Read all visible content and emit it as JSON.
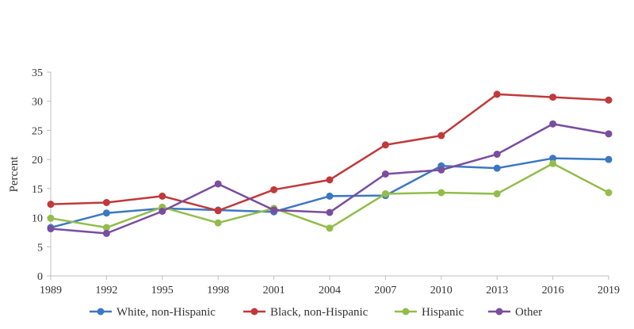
{
  "chart_data": {
    "type": "line",
    "title": "",
    "xlabel": "",
    "ylabel": "Percent",
    "x": [
      "1989",
      "1992",
      "1995",
      "1998",
      "2001",
      "2004",
      "2007",
      "2010",
      "2013",
      "2016",
      "2019"
    ],
    "ylim": [
      0,
      35
    ],
    "yticks": [
      0,
      5,
      10,
      15,
      20,
      25,
      30,
      35
    ],
    "grid": false,
    "legend_position": "bottom",
    "series": [
      {
        "name": "White, non-Hispanic",
        "color": "#3c78c2",
        "values": [
          8.3,
          10.8,
          11.6,
          11.3,
          11.0,
          13.7,
          13.8,
          18.9,
          18.5,
          20.2,
          20.0
        ]
      },
      {
        "name": "Black, non-Hispanic",
        "color": "#c0393b",
        "values": [
          12.3,
          12.6,
          13.7,
          11.2,
          14.8,
          16.5,
          22.5,
          24.1,
          31.2,
          30.7,
          30.2
        ]
      },
      {
        "name": "Hispanic",
        "color": "#92bd4a",
        "values": [
          9.9,
          8.3,
          11.8,
          9.1,
          11.6,
          8.2,
          14.1,
          14.3,
          14.1,
          19.3,
          14.3
        ]
      },
      {
        "name": "Other",
        "color": "#7a4d9e",
        "values": [
          8.1,
          7.3,
          11.1,
          15.8,
          11.3,
          10.9,
          17.5,
          18.2,
          20.9,
          26.1,
          24.4
        ]
      }
    ]
  }
}
